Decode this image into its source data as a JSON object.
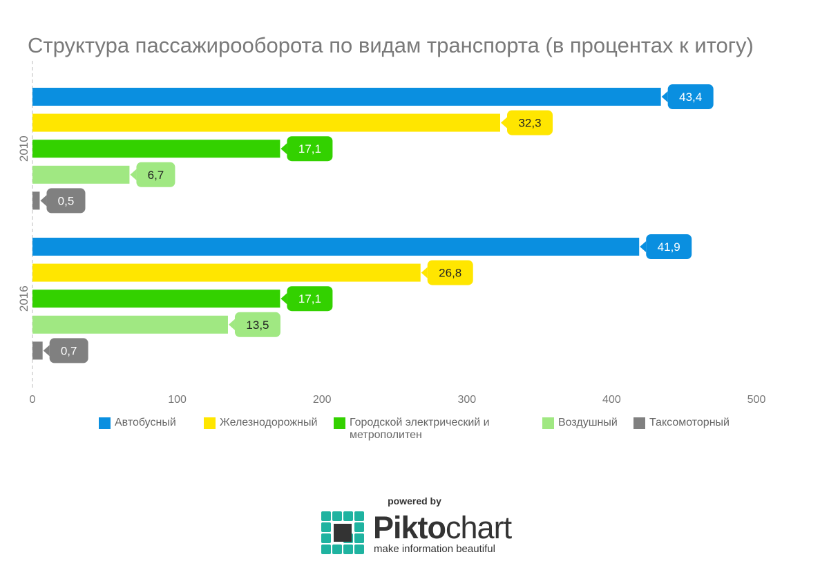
{
  "chart_data": {
    "type": "bar",
    "orientation": "horizontal",
    "title": "Структура пассажирооборота по видам транспорта (в процентах к итогу)",
    "categories": [
      "2010",
      "2016"
    ],
    "series": [
      {
        "name": "Автобусный",
        "color": "#0a8fe0",
        "values": [
          43.4,
          41.9
        ],
        "labels": [
          "43,4",
          "41,9"
        ],
        "label_color": "#ffffff"
      },
      {
        "name": "Железнодорожный",
        "color": "#ffe600",
        "values": [
          32.3,
          26.8
        ],
        "labels": [
          "32,3",
          "26,8"
        ],
        "label_color": "#222222"
      },
      {
        "name": "Городской электрический и метрополитен",
        "color": "#33d100",
        "values": [
          17.1,
          17.1
        ],
        "labels": [
          "17,1",
          "17,1"
        ],
        "label_color": "#ffffff"
      },
      {
        "name": "Воздушный",
        "color": "#a0e882",
        "values": [
          6.7,
          13.5
        ],
        "labels": [
          "6,7",
          "13,5"
        ],
        "label_color": "#222222"
      },
      {
        "name": "Таксомоторный",
        "color": "#808080",
        "values": [
          0.5,
          0.7
        ],
        "labels": [
          "0,5",
          "0,7"
        ],
        "label_color": "#ffffff"
      }
    ],
    "value_to_axis_scale": 10,
    "xlim": [
      0,
      500
    ],
    "xticks": [
      "0",
      "100",
      "200",
      "300",
      "400",
      "500"
    ],
    "xlabel": "",
    "ylabel": "",
    "grid": false,
    "legend_position": "bottom"
  },
  "footer": {
    "powered_by": "powered by",
    "brand_a": "Pikto",
    "brand_b": "chart",
    "tagline": "make information beautiful"
  }
}
